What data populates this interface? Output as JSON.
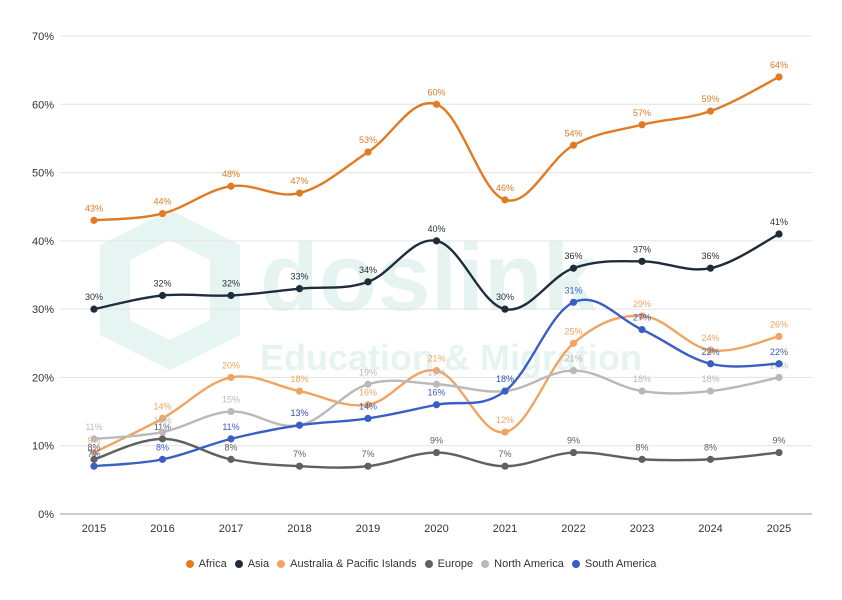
{
  "watermark": {
    "brand": "doslink",
    "tagline": "Education & Migration"
  },
  "chart_data": {
    "type": "line",
    "categories": [
      "2015",
      "2016",
      "2017",
      "2018",
      "2019",
      "2020",
      "2021",
      "2022",
      "2023",
      "2024",
      "2025"
    ],
    "ylim": [
      0,
      70
    ],
    "yticks": [
      "0%",
      "10%",
      "20%",
      "30%",
      "40%",
      "50%",
      "60%",
      "70%"
    ],
    "grid": true,
    "legend_position": "bottom",
    "series": [
      {
        "name": "Africa",
        "color": "#e07b24",
        "values": [
          43,
          44,
          48,
          47,
          53,
          60,
          46,
          54,
          57,
          59,
          64
        ]
      },
      {
        "name": "Asia",
        "color": "#1f2d3a",
        "values": [
          30,
          32,
          32,
          33,
          34,
          40,
          30,
          36,
          37,
          36,
          41
        ]
      },
      {
        "name": "Australia & Pacific Islands",
        "color": "#f1a460",
        "values": [
          9,
          14,
          20,
          18,
          16,
          21,
          12,
          25,
          29,
          24,
          26
        ]
      },
      {
        "name": "Europe",
        "color": "#606060",
        "values": [
          8,
          11,
          8,
          7,
          7,
          9,
          7,
          9,
          8,
          8,
          9
        ]
      },
      {
        "name": "North America",
        "color": "#b9b9b9",
        "values": [
          11,
          12,
          15,
          13,
          19,
          19,
          18,
          21,
          18,
          18,
          20
        ]
      },
      {
        "name": "South America",
        "color": "#3a5fc4",
        "values": [
          7,
          8,
          11,
          13,
          14,
          16,
          18,
          31,
          27,
          22,
          22
        ]
      }
    ],
    "labels_suffix": "%"
  }
}
